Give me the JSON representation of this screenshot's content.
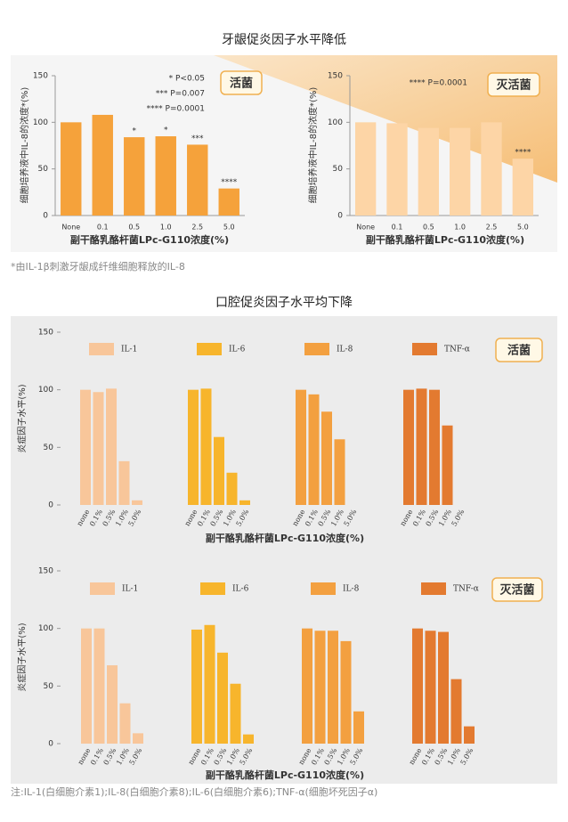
{
  "section_1_title": "牙龈促炎因子水平降低",
  "section_1_note": "*由IL-1β刺激牙龈成纤维细胞释放的IL-8",
  "section_2_title": "口腔促炎因子水平均下降",
  "section_2_note": "注:IL-1(白细胞介素1);IL-8(白细胞介素8);IL-6(白细胞介素6);TNF-α(细胞坏死因子α)",
  "chart_data": [
    {
      "type": "bar",
      "badge": "活菌",
      "y_label": "细胞培养液中IL-8的浓度*(%)",
      "x_label": "副干酪乳酪杆菌LPc-G110浓度(%)",
      "categories": [
        "None",
        "0.1",
        "0.5",
        "1.0",
        "2.5",
        "5.0"
      ],
      "values": [
        100,
        108,
        84,
        85,
        76,
        29
      ],
      "significance": [
        null,
        null,
        "*",
        "*",
        "***",
        "****"
      ],
      "color": "#f5a23b",
      "ylim": [
        0,
        150
      ],
      "yticks": [
        0,
        50,
        100,
        150
      ],
      "notes": [
        "*  P<0.05",
        "***  P=0.007",
        "****  P=0.0001"
      ]
    },
    {
      "type": "bar",
      "badge": "灭活菌",
      "y_label": "细胞培养液中IL-8的浓度*(%)",
      "x_label": "副干酪乳酪杆菌LPc-G110浓度(%)",
      "categories": [
        "None",
        "0.1",
        "0.5",
        "1.0",
        "2.5",
        "5.0"
      ],
      "values": [
        100,
        99,
        94,
        94,
        100,
        61
      ],
      "significance": [
        null,
        null,
        null,
        null,
        null,
        "****"
      ],
      "color": "#fdd5a6",
      "ylim": [
        0,
        150
      ],
      "yticks": [
        0,
        50,
        100,
        150
      ],
      "notes": [
        "****  P=0.0001"
      ]
    },
    {
      "type": "grouped_bar",
      "badge": "活菌",
      "y_label": "炎症因子水平(%)",
      "x_label": "副干酪乳酪杆菌LPc-G110浓度(%)",
      "categories": [
        "none",
        "0.1%",
        "0.5%",
        "1.0%",
        "5.0%"
      ],
      "series": [
        {
          "name": "IL-1",
          "color": "#f8c69a",
          "values": [
            100,
            98,
            101,
            38,
            4
          ]
        },
        {
          "name": "IL-6",
          "color": "#f7b52c",
          "values": [
            100,
            101,
            59,
            28,
            4
          ]
        },
        {
          "name": "IL-8",
          "color": "#f3a040",
          "values": [
            100,
            96,
            81,
            57,
            0
          ]
        },
        {
          "name": "TNF-α",
          "color": "#e37a30",
          "values": [
            100,
            101,
            100,
            69,
            0
          ]
        }
      ],
      "ylim": [
        0,
        150
      ],
      "yticks": [
        0,
        50,
        100,
        150
      ]
    },
    {
      "type": "grouped_bar",
      "badge": "灭活菌",
      "y_label": "炎症因子水平(%)",
      "x_label": "副干酪乳酪杆菌LPc-G110浓度(%)",
      "categories": [
        "none",
        "0.1%",
        "0.5%",
        "1.0%",
        "5.0%"
      ],
      "series": [
        {
          "name": "IL-1",
          "color": "#f8c69a",
          "values": [
            100,
            100,
            68,
            35,
            9
          ]
        },
        {
          "name": "IL-6",
          "color": "#f7b52c",
          "values": [
            99,
            103,
            79,
            52,
            8
          ]
        },
        {
          "name": "IL-8",
          "color": "#f3a040",
          "values": [
            100,
            98,
            98,
            89,
            28
          ]
        },
        {
          "name": "TNF-α",
          "color": "#e37a30",
          "values": [
            100,
            98,
            97,
            56,
            15
          ]
        }
      ],
      "ylim": [
        0,
        150
      ],
      "yticks": [
        0,
        50,
        100,
        150
      ]
    }
  ]
}
